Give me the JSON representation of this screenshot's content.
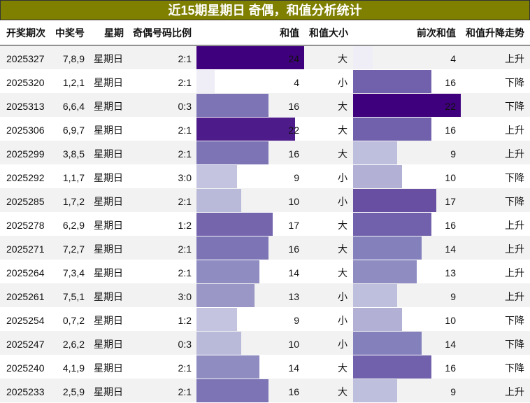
{
  "title": "近15期星期日 奇偶，和值分析统计",
  "table": {
    "columns": [
      "开奖期次",
      "中奖号",
      "星期",
      "奇偶号码比例",
      "和值",
      "和值大小",
      "前次和值",
      "和值升降走势"
    ],
    "rows": [
      [
        "2025327",
        "7,8,9",
        "星期日",
        "2:1",
        24,
        "大",
        4,
        "上升"
      ],
      [
        "2025320",
        "1,2,1",
        "星期日",
        "2:1",
        4,
        "小",
        16,
        "下降"
      ],
      [
        "2025313",
        "6,6,4",
        "星期日",
        "0:3",
        16,
        "大",
        22,
        "下降"
      ],
      [
        "2025306",
        "6,9,7",
        "星期日",
        "2:1",
        22,
        "大",
        16,
        "上升"
      ],
      [
        "2025299",
        "3,8,5",
        "星期日",
        "2:1",
        16,
        "大",
        9,
        "上升"
      ],
      [
        "2025292",
        "1,1,7",
        "星期日",
        "3:0",
        9,
        "小",
        10,
        "下降"
      ],
      [
        "2025285",
        "1,7,2",
        "星期日",
        "2:1",
        10,
        "小",
        17,
        "下降"
      ],
      [
        "2025278",
        "6,2,9",
        "星期日",
        "1:2",
        17,
        "大",
        16,
        "上升"
      ],
      [
        "2025271",
        "7,2,7",
        "星期日",
        "2:1",
        16,
        "大",
        14,
        "上升"
      ],
      [
        "2025264",
        "7,3,4",
        "星期日",
        "2:1",
        14,
        "大",
        13,
        "上升"
      ],
      [
        "2025261",
        "7,5,1",
        "星期日",
        "3:0",
        13,
        "小",
        9,
        "上升"
      ],
      [
        "2025254",
        "0,7,2",
        "星期日",
        "1:2",
        9,
        "小",
        10,
        "下降"
      ],
      [
        "2025247",
        "2,6,2",
        "星期日",
        "0:3",
        10,
        "小",
        14,
        "下降"
      ],
      [
        "2025240",
        "4,1,9",
        "星期日",
        "2:1",
        14,
        "大",
        16,
        "下降"
      ],
      [
        "2025233",
        "2,5,9",
        "星期日",
        "2:1",
        16,
        "大",
        9,
        "上升"
      ]
    ]
  }
}
